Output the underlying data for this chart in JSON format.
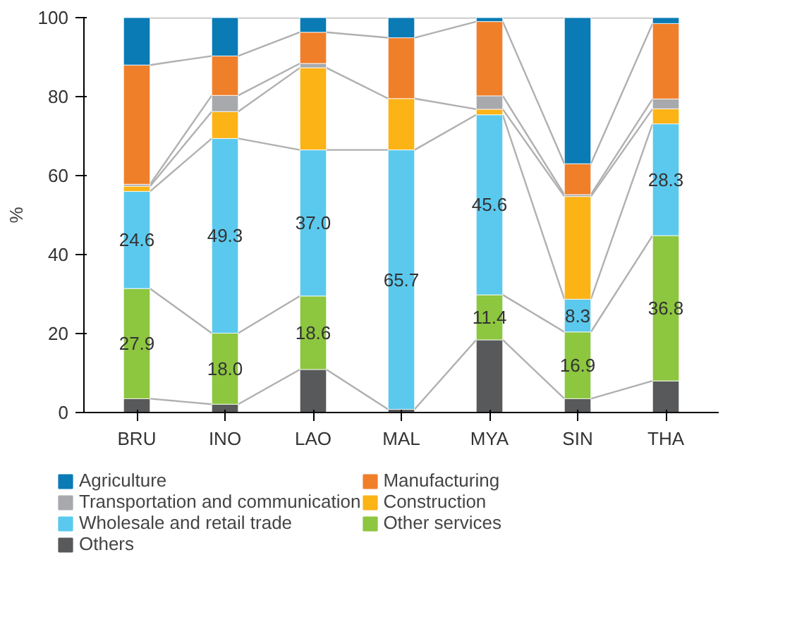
{
  "chart_data": {
    "type": "bar",
    "stacked": true,
    "ylabel": "%",
    "categories": [
      "BRU",
      "INO",
      "LAO",
      "MAL",
      "MYA",
      "SIN",
      "THA"
    ],
    "ylim": [
      0,
      100
    ],
    "yticks": [
      0,
      20,
      40,
      60,
      80,
      100
    ],
    "grid": false,
    "legend": "bottom",
    "series": [
      {
        "name": "Others",
        "color": "#58595b",
        "values": [
          3.5,
          2.1,
          10.9,
          0.8,
          18.4,
          3.5,
          8.0
        ]
      },
      {
        "name": "Other services",
        "color": "#8dc63f",
        "values": [
          27.9,
          18.0,
          18.6,
          null,
          11.4,
          16.9,
          36.8
        ],
        "value_labels": [
          "27.9",
          "18.0",
          "18.6",
          null,
          "11.4",
          "16.9",
          "36.8"
        ]
      },
      {
        "name": "Wholesale and retail trade",
        "color": "#5bc9ee",
        "values": [
          24.6,
          49.3,
          37.0,
          65.7,
          45.6,
          8.3,
          28.3
        ],
        "value_labels": [
          "24.6",
          "49.3",
          "37.0",
          "65.7",
          "45.6",
          "8.3",
          "28.3"
        ]
      },
      {
        "name": "Construction",
        "color": "#fbb316",
        "values": [
          1.3,
          6.8,
          20.8,
          13.0,
          1.4,
          26.0,
          3.8
        ]
      },
      {
        "name": "Transportation and communication",
        "color": "#a7a9ac",
        "values": [
          0.5,
          4.1,
          1.1,
          null,
          3.4,
          0.5,
          2.5
        ]
      },
      {
        "name": "Manufacturing",
        "color": "#f07f2a",
        "values": [
          30.2,
          10.0,
          7.9,
          15.4,
          18.8,
          7.8,
          19.1
        ]
      },
      {
        "name": "Agriculture",
        "color": "#0a7bb5",
        "values": [
          12.0,
          9.7,
          3.7,
          5.1,
          1.0,
          37.0,
          1.5
        ]
      }
    ]
  }
}
